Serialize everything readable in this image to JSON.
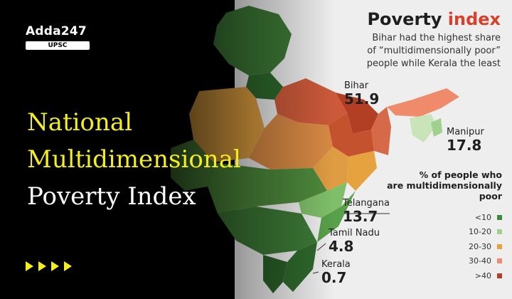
{
  "brand": {
    "name": "Adda247",
    "sub": "UPSC"
  },
  "title": {
    "line1": "National",
    "line2": "Multidimensional",
    "line3": "Poverty Index"
  },
  "graphic": {
    "title_part1": "Poverty ",
    "title_part2": "index",
    "subtitle_lines": [
      "Bihar had the highest share",
      "of “multidimensionally poor”",
      "people while Kerala the least"
    ]
  },
  "callouts": [
    {
      "state": "Bihar",
      "value": "51.9"
    },
    {
      "state": "Manipur",
      "value": "17.8"
    },
    {
      "state": "Telangana",
      "value": "13.7"
    },
    {
      "state": "Tamil Nadu",
      "value": "4.8"
    },
    {
      "state": "Kerala",
      "value": "0.7"
    }
  ],
  "legend": {
    "title_lines": [
      "% of people who",
      "are multidimensionally",
      "poor"
    ],
    "items": [
      {
        "label": "<10",
        "color": "#3d8a3a"
      },
      {
        "label": "10-20",
        "color": "#9fd08e"
      },
      {
        "label": "20-30",
        "color": "#e7a23e"
      },
      {
        "label": "30-40",
        "color": "#ef8a6b"
      },
      {
        "label": ">40",
        "color": "#b23f24"
      }
    ]
  },
  "colors": {
    "title_yellow": "#f3ee1c",
    "accent_red": "#d9402b",
    "map_dark_green": "#3d7a36"
  },
  "decor": {
    "arrow_count": 4,
    "arrow_icon": "play-arrow-icon"
  }
}
